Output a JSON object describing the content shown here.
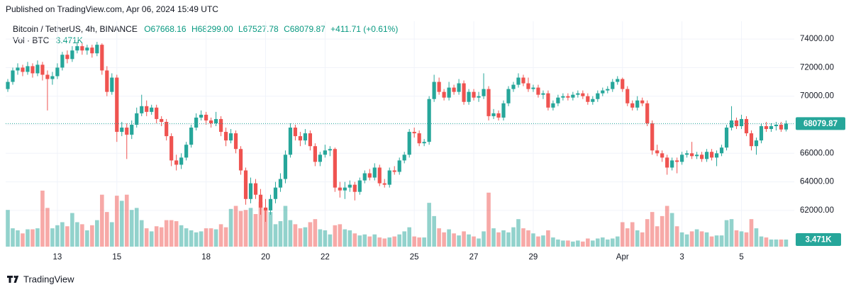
{
  "chart_data": {
    "type": "candlestick",
    "header": "Published on TradingView.com, Apr 06, 2024 15:49 UTC",
    "title": "Bitcoin / TetherUS, 4h, BINANCE",
    "legend_values": [
      "O67668.16",
      "H68299.00",
      "L67527.78",
      "C68079.87",
      "+411.71 (+0.61%)"
    ],
    "volume_title": "Vol · BTC",
    "volume_label": "3.471K",
    "footer": "TradingView",
    "up_color": "#26a69a",
    "down_color": "#ef5350",
    "grid": true,
    "ylim": [
      59464,
      75245
    ],
    "yticks": [
      {
        "value": 62000,
        "label": "62000.00"
      },
      {
        "value": 64000,
        "label": "64000.00"
      },
      {
        "value": 66000,
        "label": "66000.00"
      },
      {
        "value": 68000,
        "label": "68000.00"
      },
      {
        "value": 70000,
        "label": "70000.00"
      },
      {
        "value": 72000,
        "label": "72000.00"
      },
      {
        "value": 74000,
        "label": "74000.00"
      }
    ],
    "volume_lim": [
      0,
      40000
    ],
    "categories": [
      null,
      null,
      null,
      null,
      null,
      null,
      null,
      null,
      null,
      null,
      "13",
      null,
      null,
      null,
      null,
      null,
      null,
      null,
      null,
      null,
      null,
      null,
      "15",
      null,
      null,
      null,
      null,
      null,
      null,
      null,
      null,
      null,
      null,
      null,
      null,
      null,
      null,
      null,
      null,
      null,
      "18",
      null,
      null,
      null,
      null,
      null,
      null,
      null,
      null,
      null,
      null,
      null,
      "20",
      null,
      null,
      null,
      null,
      null,
      null,
      null,
      null,
      null,
      null,
      null,
      "22",
      null,
      null,
      null,
      null,
      null,
      null,
      null,
      null,
      null,
      null,
      null,
      null,
      null,
      null,
      null,
      null,
      null,
      "25",
      null,
      null,
      null,
      null,
      null,
      null,
      null,
      null,
      null,
      null,
      null,
      "27",
      null,
      null,
      null,
      null,
      null,
      null,
      null,
      null,
      null,
      null,
      null,
      "29",
      null,
      null,
      null,
      null,
      null,
      null,
      null,
      null,
      null,
      null,
      null,
      null,
      null,
      null,
      null,
      null,
      null,
      "Apr",
      null,
      null,
      null,
      null,
      null,
      null,
      null,
      null,
      null,
      null,
      null,
      "3",
      null,
      null,
      null,
      null,
      null,
      null,
      null,
      null,
      null,
      null,
      null,
      "5",
      null,
      null,
      null,
      null,
      null,
      null,
      null,
      null,
      null
    ],
    "open": [
      70500,
      71000,
      71800,
      72000,
      71700,
      72100,
      71600,
      72200,
      71500,
      71200,
      71400,
      72000,
      72900,
      72600,
      73200,
      73500,
      73200,
      73400,
      73000,
      73600,
      71800,
      70300,
      71300,
      67500,
      67800,
      67300,
      68000,
      68800,
      69300,
      68900,
      69200,
      68400,
      68200,
      67200,
      65500,
      65200,
      65700,
      66600,
      67800,
      68500,
      68700,
      68300,
      68100,
      68400,
      67500,
      66900,
      67400,
      66300,
      64800,
      62800,
      63900,
      63100,
      62200,
      62000,
      62800,
      63600,
      64200,
      65900,
      67800,
      67200,
      66900,
      67400,
      66500,
      65400,
      65900,
      66200,
      66300,
      63600,
      63400,
      63600,
      63800,
      63300,
      64100,
      64600,
      64300,
      65000,
      63900,
      63800,
      64800,
      64700,
      65500,
      65900,
      67500,
      67400,
      66700,
      66800,
      69800,
      71000,
      70300,
      69900,
      70600,
      70300,
      70900,
      69600,
      70300,
      69900,
      70000,
      70500,
      68600,
      68800,
      68500,
      69500,
      70500,
      70800,
      71300,
      70900,
      70500,
      70600,
      70100,
      70200,
      69200,
      69500,
      69900,
      70000,
      69900,
      70100,
      70200,
      70000,
      69600,
      69800,
      70200,
      70400,
      70500,
      71000,
      71200,
      70500,
      69500,
      69200,
      69700,
      69500,
      68100,
      66200,
      66000,
      65700,
      65000,
      65500,
      65400,
      65900,
      66000,
      65800,
      65900,
      65600,
      66100,
      65700,
      66000,
      66400,
      67800,
      68300,
      67900,
      68400,
      67400,
      66500,
      66900,
      67900,
      67700,
      67900,
      68000,
      67668.16
    ],
    "high": [
      71200,
      72000,
      72300,
      72200,
      72400,
      72300,
      72500,
      72400,
      71800,
      71700,
      72300,
      73100,
      73200,
      73500,
      73800,
      73700,
      73600,
      73600,
      73800,
      73700,
      72100,
      71600,
      71500,
      68200,
      68100,
      68300,
      69200,
      70100,
      69700,
      69400,
      69400,
      68600,
      68400,
      67400,
      65900,
      66000,
      66800,
      68000,
      68800,
      69000,
      68900,
      68500,
      68900,
      68600,
      67800,
      67700,
      67600,
      66500,
      65000,
      64300,
      64200,
      63500,
      62800,
      63100,
      64000,
      64600,
      66200,
      68100,
      68000,
      67500,
      67700,
      67600,
      66700,
      66100,
      66600,
      66500,
      66400,
      64000,
      64000,
      64100,
      64000,
      64300,
      64800,
      64900,
      65300,
      65200,
      64200,
      65000,
      65100,
      65700,
      66100,
      67700,
      67800,
      67600,
      67000,
      70000,
      71500,
      71300,
      70500,
      71000,
      70800,
      71200,
      71100,
      70500,
      70500,
      70300,
      71600,
      70700,
      69100,
      69000,
      69700,
      70700,
      71000,
      71600,
      71500,
      71300,
      70800,
      70800,
      70400,
      70400,
      69700,
      70100,
      70200,
      70200,
      70300,
      70400,
      70400,
      70200,
      70000,
      70400,
      70600,
      70700,
      71200,
      71400,
      71300,
      70700,
      69700,
      70000,
      69900,
      69700,
      68300,
      66600,
      66200,
      65900,
      65700,
      65700,
      66100,
      66200,
      66800,
      66100,
      66100,
      66300,
      66300,
      66200,
      66600,
      68000,
      69300,
      68500,
      68700,
      68600,
      67600,
      67100,
      68100,
      68200,
      68100,
      68200,
      68200,
      68299
    ],
    "low": [
      70300,
      70800,
      71500,
      71400,
      71500,
      71300,
      71400,
      71100,
      69000,
      70800,
      71200,
      71800,
      72300,
      72400,
      73000,
      72900,
      72900,
      72700,
      72800,
      71500,
      70000,
      70100,
      66800,
      67200,
      65600,
      67000,
      67800,
      68600,
      68600,
      68700,
      68100,
      67900,
      66900,
      65100,
      64800,
      64900,
      65500,
      66400,
      67600,
      68300,
      68000,
      67800,
      67900,
      67200,
      66500,
      66700,
      66000,
      64500,
      62400,
      62500,
      62800,
      61700,
      61200,
      61700,
      62500,
      63300,
      63900,
      65700,
      66900,
      66500,
      66600,
      66200,
      65100,
      65100,
      65700,
      65800,
      63300,
      62900,
      62800,
      63300,
      62700,
      63100,
      63900,
      64100,
      64100,
      63700,
      63600,
      63600,
      64500,
      64500,
      65300,
      65700,
      67100,
      66500,
      66500,
      66600,
      69600,
      70100,
      69700,
      69700,
      70100,
      70100,
      69400,
      69400,
      69700,
      69600,
      69800,
      68300,
      68400,
      68300,
      68300,
      69300,
      70300,
      70600,
      70700,
      70300,
      70300,
      69900,
      69800,
      69000,
      69000,
      69300,
      69700,
      69700,
      69700,
      69900,
      69800,
      69400,
      69400,
      69600,
      70000,
      70200,
      70300,
      70800,
      70300,
      69300,
      69000,
      69000,
      69300,
      67900,
      65900,
      65800,
      65400,
      64500,
      64800,
      64600,
      65200,
      65700,
      65600,
      65600,
      65400,
      65400,
      65500,
      65100,
      65800,
      66200,
      67600,
      67700,
      67700,
      67200,
      66200,
      65900,
      66700,
      67500,
      67500,
      67600,
      67500,
      67527.78
    ],
    "close": [
      71000,
      71800,
      72000,
      71700,
      72100,
      71600,
      72200,
      71500,
      71200,
      71400,
      72000,
      72900,
      72600,
      73200,
      73500,
      73200,
      73400,
      73000,
      73600,
      71800,
      70300,
      71300,
      67500,
      67800,
      67300,
      68000,
      68800,
      69300,
      68900,
      69200,
      68400,
      68200,
      67200,
      65500,
      65200,
      65700,
      66600,
      67800,
      68500,
      68700,
      68300,
      68100,
      68400,
      67500,
      66900,
      67400,
      66300,
      64800,
      62800,
      63900,
      63100,
      62200,
      62000,
      62800,
      63600,
      64200,
      65900,
      67800,
      67200,
      66900,
      67400,
      66500,
      65400,
      65900,
      66200,
      66300,
      63600,
      63400,
      63600,
      63800,
      63300,
      64100,
      64600,
      64300,
      65000,
      63900,
      63800,
      64800,
      64700,
      65500,
      65900,
      67500,
      67400,
      66700,
      66800,
      69800,
      71000,
      70300,
      69900,
      70600,
      70300,
      70900,
      69600,
      70300,
      69900,
      70000,
      70500,
      68600,
      68800,
      68500,
      69500,
      70500,
      70800,
      71300,
      70900,
      70500,
      70600,
      70100,
      70200,
      69200,
      69500,
      69900,
      70000,
      69900,
      70100,
      70200,
      70000,
      69600,
      69800,
      70200,
      70400,
      70500,
      71000,
      71200,
      70500,
      69500,
      69200,
      69700,
      69500,
      68100,
      66200,
      66000,
      65700,
      65000,
      65500,
      65400,
      65900,
      66000,
      65800,
      65900,
      65600,
      66100,
      65700,
      66000,
      66400,
      67800,
      68300,
      67900,
      68400,
      67400,
      66500,
      66900,
      67900,
      67700,
      67900,
      68000,
      67668.16,
      68079.87
    ],
    "volume": [
      18000,
      9000,
      8000,
      6500,
      8500,
      8500,
      9000,
      27500,
      19000,
      9000,
      10500,
      12000,
      10000,
      16500,
      12000,
      11000,
      8000,
      10500,
      13000,
      25500,
      17000,
      12000,
      25000,
      22500,
      25500,
      18000,
      19000,
      13000,
      9000,
      7500,
      10000,
      9500,
      13000,
      13000,
      12500,
      10500,
      9000,
      8000,
      7000,
      7500,
      9000,
      9000,
      8500,
      11000,
      9500,
      18500,
      20000,
      17500,
      18000,
      19000,
      16000,
      22000,
      18500,
      17000,
      11000,
      12500,
      20000,
      13000,
      11000,
      9000,
      9500,
      12000,
      13500,
      8500,
      8000,
      6000,
      10500,
      11000,
      8500,
      8000,
      6500,
      5500,
      6000,
      5000,
      6000,
      4500,
      4000,
      4500,
      5000,
      6000,
      7500,
      9500,
      5000,
      4500,
      4500,
      21500,
      15000,
      9000,
      7000,
      8500,
      6500,
      5500,
      7500,
      6000,
      5000,
      4000,
      7500,
      26500,
      9000,
      7000,
      8000,
      7000,
      9500,
      13500,
      9000,
      8000,
      6500,
      5000,
      5500,
      8000,
      4500,
      3500,
      3000,
      3000,
      2500,
      3000,
      2500,
      4000,
      3000,
      4000,
      4500,
      3500,
      4000,
      5000,
      12000,
      9000,
      12000,
      8000,
      7000,
      13500,
      17000,
      10000,
      15000,
      20000,
      16500,
      10000,
      7000,
      6000,
      7500,
      8500,
      7500,
      7000,
      5000,
      5500,
      5500,
      13000,
      13500,
      8000,
      7500,
      7000,
      13500,
      9000,
      5000,
      4500,
      3500,
      3500,
      3500,
      3471
    ]
  }
}
